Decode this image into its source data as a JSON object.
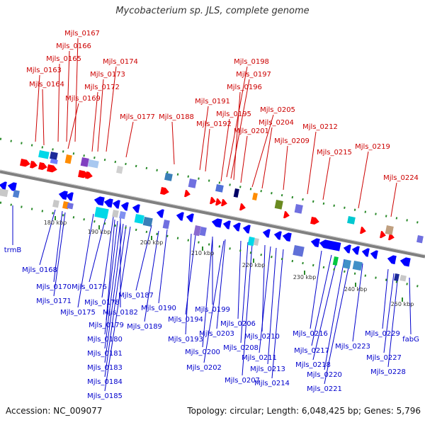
{
  "title": "Mycobacterium sp. JLS, complete genome",
  "footer": {
    "accession": "Accession: NC_009077",
    "topology": "Topology: circular; Length: 6,048,425 bp; Genes: 5,796"
  },
  "colors": {
    "forward_label": "#cc0000",
    "reverse_label": "#0000cc",
    "backbone": "#808080",
    "forward_arrow": "#ff0000",
    "reverse_arrow": "#0000ff",
    "tick": "#2a8a2a"
  },
  "scale_ticks": [
    "180 kbp",
    "190 kbp",
    "200 kbp",
    "210 kbp",
    "220 kbp",
    "230 kbp",
    "240 kbp",
    "250 kbp"
  ],
  "forward_labels": [
    "Mjls_0167",
    "Mjls_0166",
    "Mjls_0165",
    "Mjls_0163",
    "Mjls_0164",
    "Mjls_0169",
    "Mjls_0174",
    "Mjls_0173",
    "Mjls_0172",
    "Mjls_0177",
    "Mjls_0188",
    "Mjls_0191",
    "Mjls_0192",
    "Mjls_0198",
    "Mjls_0197",
    "Mjls_0196",
    "Mjls_0195",
    "Mjls_0201",
    "Mjls_0205",
    "Mjls_0204",
    "Mjls_0209",
    "Mjls_0212",
    "Mjls_0215",
    "Mjls_0219",
    "Mjls_0224"
  ],
  "reverse_labels": [
    "trmB",
    "Mjls_0168",
    "Mjls_0170",
    "Mjls_0171",
    "Mjls_0175",
    "Mjls_0176",
    "Mjls_0178",
    "Mjls_0182",
    "Mjls_0179",
    "Mjls_0180",
    "Mjls_0181",
    "Mjls_0183",
    "Mjls_0184",
    "Mjls_0185",
    "Mjls_0187",
    "Mjls_0190",
    "Mjls_0189",
    "Mjls_0193",
    "Mjls_0194",
    "Mjls_0199",
    "Mjls_0200",
    "Mjls_0203",
    "Mjls_0202",
    "Mjls_0206",
    "Mjls_0208",
    "Mjls_0207",
    "Mjls_0210",
    "Mjls_0211",
    "Mjls_0213",
    "Mjls_0214",
    "Mjls_0216",
    "Mjls_0217",
    "Mjls_0218",
    "Mjls_0220",
    "Mjls_0221",
    "Mjls_0223",
    "Mjls_0229",
    "Mjls_0227",
    "Mjls_0228",
    "fabG"
  ]
}
